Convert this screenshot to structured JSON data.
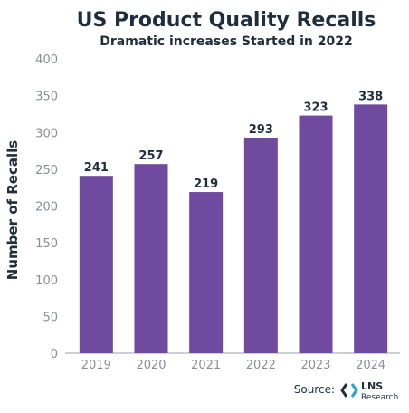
{
  "chart_data": {
    "type": "bar",
    "title": "US Product Quality Recalls",
    "subtitle": "Dramatic increases Started in 2022",
    "xlabel": "",
    "ylabel": "Number of Recalls",
    "categories": [
      "2019",
      "2020",
      "2021",
      "2022",
      "2023",
      "2024"
    ],
    "values": [
      241,
      257,
      219,
      293,
      323,
      338
    ],
    "ylim": [
      0,
      400
    ],
    "yticks": [
      0,
      50,
      100,
      150,
      200,
      250,
      300,
      350,
      400
    ],
    "grid": false,
    "legend": "none",
    "bar_color": "#6f4a9e"
  },
  "source": {
    "label": "Source:",
    "logo_name": "LNS",
    "logo_sub": "Research",
    "logo_icon": "lns-research-logo-icon",
    "logo_colors": [
      "#1f2d3d",
      "#2a9fd6"
    ]
  }
}
